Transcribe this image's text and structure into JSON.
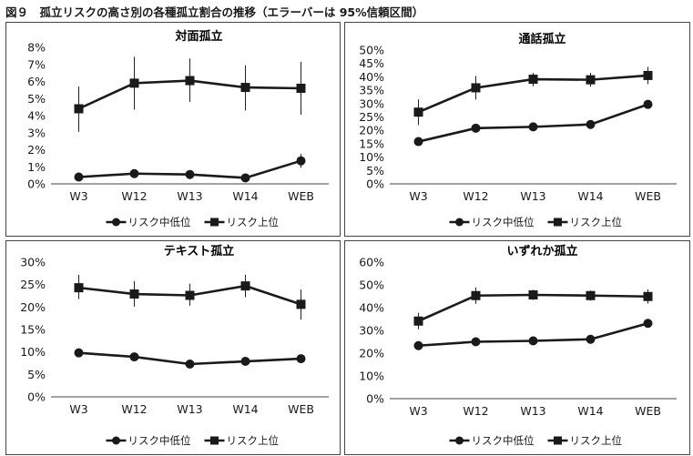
{
  "figure_title": "図９　孤立リスクの高さ別の各種孤立割合の推移（エラーバーは 95%信頼区間）",
  "chart_data": [
    {
      "type": "line",
      "title": "対面孤立",
      "categories": [
        "W3",
        "W12",
        "W13",
        "W14",
        "WEB"
      ],
      "ylim": [
        0,
        8
      ],
      "yticks": [
        0,
        1,
        2,
        3,
        4,
        5,
        6,
        7,
        8
      ],
      "ytick_labels": [
        "0%",
        "1%",
        "2%",
        "3%",
        "4%",
        "5%",
        "6%",
        "7%",
        "8%"
      ],
      "legend_position": "bottom",
      "series": [
        {
          "name": "リスク中低位",
          "marker": "circle",
          "values": [
            0.4,
            0.6,
            0.55,
            0.35,
            1.35
          ],
          "err_low": [
            0.25,
            0.45,
            0.4,
            0.2,
            0.95
          ],
          "err_high": [
            0.55,
            0.8,
            0.7,
            0.5,
            1.75
          ]
        },
        {
          "name": "リスク上位",
          "marker": "square",
          "values": [
            4.4,
            5.9,
            6.05,
            5.65,
            5.6
          ],
          "err_low": [
            3.05,
            4.35,
            4.8,
            4.3,
            4.05
          ],
          "err_high": [
            5.7,
            7.45,
            7.35,
            6.95,
            7.15
          ]
        }
      ]
    },
    {
      "type": "line",
      "title": "通話孤立",
      "categories": [
        "W3",
        "W12",
        "W13",
        "W14",
        "WEB"
      ],
      "ylim": [
        0,
        50
      ],
      "yticks": [
        0,
        5,
        10,
        15,
        20,
        25,
        30,
        35,
        40,
        45,
        50
      ],
      "ytick_labels": [
        "0%",
        "5%",
        "10%",
        "15%",
        "20%",
        "25%",
        "30%",
        "35%",
        "40%",
        "45%",
        "50%"
      ],
      "legend_position": "bottom",
      "series": [
        {
          "name": "リスク中低位",
          "marker": "circle",
          "values": [
            15.8,
            20.8,
            21.3,
            22.2,
            29.7
          ],
          "err_low": [
            15.3,
            20.3,
            20.8,
            21.7,
            28.7
          ],
          "err_high": [
            16.3,
            21.3,
            21.8,
            22.7,
            30.7
          ]
        },
        {
          "name": "リスク上位",
          "marker": "square",
          "values": [
            26.8,
            35.9,
            39.1,
            38.9,
            40.5
          ],
          "err_low": [
            22.0,
            31.5,
            36.5,
            36.3,
            37.3
          ],
          "err_high": [
            31.6,
            40.3,
            41.5,
            41.5,
            43.7
          ]
        }
      ]
    },
    {
      "type": "line",
      "title": "テキスト孤立",
      "categories": [
        "W3",
        "W12",
        "W13",
        "W14",
        "WEB"
      ],
      "ylim": [
        0,
        30
      ],
      "yticks": [
        0,
        5,
        10,
        15,
        20,
        25,
        30
      ],
      "ytick_labels": [
        "0%",
        "5%",
        "10%",
        "15%",
        "20%",
        "25%",
        "30%"
      ],
      "legend_position": "bottom",
      "series": [
        {
          "name": "リスク中低位",
          "marker": "circle",
          "values": [
            9.8,
            8.9,
            7.3,
            7.9,
            8.5
          ],
          "err_low": [
            9.0,
            8.3,
            6.8,
            7.4,
            7.6
          ],
          "err_high": [
            10.6,
            9.5,
            7.8,
            8.4,
            9.4
          ]
        },
        {
          "name": "リスク上位",
          "marker": "square",
          "values": [
            24.3,
            22.9,
            22.6,
            24.7,
            20.6
          ],
          "err_low": [
            21.8,
            20.1,
            20.3,
            22.2,
            17.2
          ],
          "err_high": [
            27.2,
            25.8,
            25.2,
            27.2,
            23.9
          ]
        }
      ]
    },
    {
      "type": "line",
      "title": "いずれか孤立",
      "categories": [
        "W3",
        "W12",
        "W13",
        "W14",
        "WEB"
      ],
      "ylim": [
        0,
        60
      ],
      "yticks": [
        0,
        10,
        20,
        30,
        40,
        50,
        60
      ],
      "ytick_labels": [
        "0%",
        "10%",
        "20%",
        "30%",
        "40%",
        "50%",
        "60%"
      ],
      "legend_position": "bottom",
      "series": [
        {
          "name": "リスク中低位",
          "marker": "circle",
          "values": [
            23.3,
            25.0,
            25.4,
            26.1,
            33.1
          ],
          "err_low": [
            22.8,
            24.5,
            24.9,
            25.6,
            32.0
          ],
          "err_high": [
            23.8,
            25.5,
            25.9,
            26.6,
            34.2
          ]
        },
        {
          "name": "リスク上位",
          "marker": "square",
          "values": [
            34.1,
            45.3,
            45.6,
            45.3,
            44.9
          ],
          "err_low": [
            30.5,
            41.7,
            43.4,
            43.1,
            41.8
          ],
          "err_high": [
            37.7,
            48.9,
            47.8,
            47.5,
            48.0
          ]
        }
      ]
    }
  ]
}
